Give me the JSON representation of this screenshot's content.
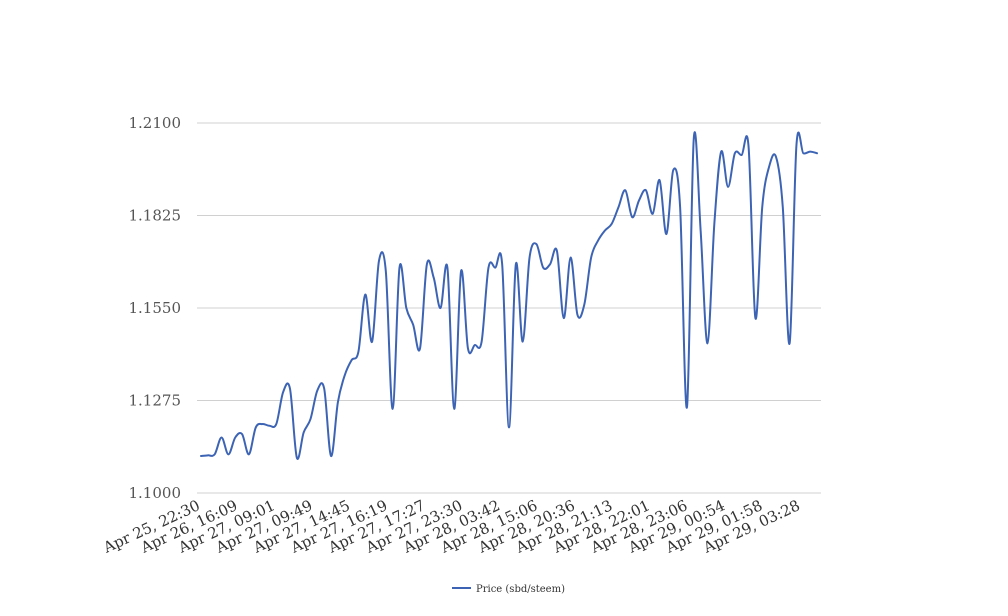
{
  "chart_data": {
    "type": "line",
    "title": "",
    "xlabel": "",
    "ylabel": "",
    "ylim": [
      1.1,
      1.21
    ],
    "y_ticks": [
      "1.1000",
      "1.1275",
      "1.1550",
      "1.1825",
      "1.2100"
    ],
    "grid": true,
    "legend_position": "bottom",
    "x_tick_labels": [
      "Apr 25, 22:30",
      "Apr 26, 16:09",
      "Apr 27, 09:01",
      "Apr 27, 09:49",
      "Apr 27, 14:45",
      "Apr 27, 16:19",
      "Apr 27, 17:27",
      "Apr 27, 23:30",
      "Apr 28, 03:42",
      "Apr 28, 15:06",
      "Apr 28, 20:36",
      "Apr 28, 21:13",
      "Apr 28, 22:01",
      "Apr 28, 23:06",
      "Apr 29, 00:54",
      "Apr 29, 01:58",
      "Apr 29, 03:28"
    ],
    "series": [
      {
        "name": "Price (sbd/steem)",
        "color": "#3d64b4",
        "values": [
          1.111,
          1.1112,
          1.1115,
          1.1165,
          1.1115,
          1.1165,
          1.1175,
          1.1115,
          1.1195,
          1.1205,
          1.12,
          1.1205,
          1.13,
          1.131,
          1.1105,
          1.118,
          1.122,
          1.1305,
          1.131,
          1.111,
          1.127,
          1.135,
          1.1395,
          1.142,
          1.159,
          1.145,
          1.169,
          1.166,
          1.125,
          1.167,
          1.155,
          1.15,
          1.143,
          1.168,
          1.164,
          1.155,
          1.167,
          1.125,
          1.166,
          1.143,
          1.144,
          1.145,
          1.167,
          1.167,
          1.168,
          1.1195,
          1.168,
          1.145,
          1.17,
          1.174,
          1.167,
          1.168,
          1.172,
          1.152,
          1.17,
          1.153,
          1.156,
          1.17,
          1.175,
          1.178,
          1.18,
          1.185,
          1.19,
          1.182,
          1.187,
          1.19,
          1.183,
          1.193,
          1.177,
          1.196,
          1.185,
          1.1255,
          1.2055,
          1.178,
          1.1445,
          1.18,
          1.2015,
          1.191,
          1.201,
          1.2005,
          1.203,
          1.152,
          1.185,
          1.197,
          1.2,
          1.185,
          1.1445,
          1.2035,
          1.201,
          1.2015,
          1.201
        ]
      }
    ]
  }
}
